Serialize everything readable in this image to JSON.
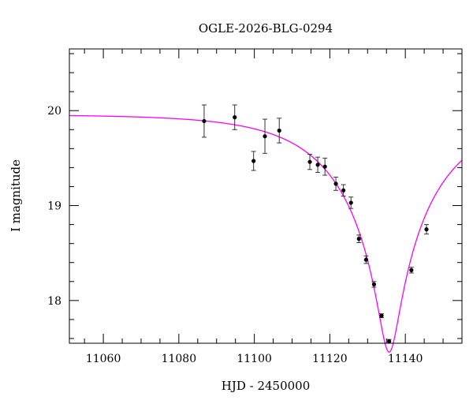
{
  "chart_data": {
    "type": "scatter",
    "title": "OGLE-2026-BLG-0294",
    "xlabel": "HJD - 2450000",
    "ylabel": "I magnitude",
    "xlim": [
      11051,
      11155
    ],
    "ylim": [
      20.65,
      17.55
    ],
    "y_inverted": true,
    "x_ticks": [
      11060,
      11080,
      11100,
      11120,
      11140
    ],
    "x_tick_labels": [
      "11060",
      "11080",
      "11100",
      "11120",
      "11140"
    ],
    "y_ticks": [
      18,
      19,
      20
    ],
    "y_tick_labels": [
      "18",
      "19",
      "20"
    ],
    "y_minor_step": 0.2,
    "x_minor_step": 5,
    "grid": false,
    "model_color": "#ff00ff",
    "marker_color": "#000000",
    "points": [
      {
        "x": 11086.7,
        "y": 19.89,
        "err": 0.17
      },
      {
        "x": 11094.8,
        "y": 19.93,
        "err": 0.13
      },
      {
        "x": 11099.8,
        "y": 19.47,
        "err": 0.1
      },
      {
        "x": 11102.8,
        "y": 19.73,
        "err": 0.18
      },
      {
        "x": 11106.6,
        "y": 19.79,
        "err": 0.13
      },
      {
        "x": 11114.7,
        "y": 19.46,
        "err": 0.08
      },
      {
        "x": 11116.8,
        "y": 19.43,
        "err": 0.08
      },
      {
        "x": 11118.7,
        "y": 19.41,
        "err": 0.09
      },
      {
        "x": 11121.6,
        "y": 19.23,
        "err": 0.07
      },
      {
        "x": 11123.6,
        "y": 19.16,
        "err": 0.06
      },
      {
        "x": 11125.6,
        "y": 19.03,
        "err": 0.06
      },
      {
        "x": 11127.7,
        "y": 18.65,
        "err": 0.04
      },
      {
        "x": 11129.6,
        "y": 18.43,
        "err": 0.04
      },
      {
        "x": 11131.7,
        "y": 18.17,
        "err": 0.03
      },
      {
        "x": 11133.7,
        "y": 17.84,
        "err": 0.02
      },
      {
        "x": 11135.7,
        "y": 17.57,
        "err": 0.02
      },
      {
        "x": 11141.6,
        "y": 18.32,
        "err": 0.03
      },
      {
        "x": 11145.6,
        "y": 18.75,
        "err": 0.05
      }
    ],
    "model": {
      "type": "pspl",
      "baseline_mag": 19.96,
      "t0": 11135.7,
      "tE": 25,
      "u0": 0.1
    }
  }
}
